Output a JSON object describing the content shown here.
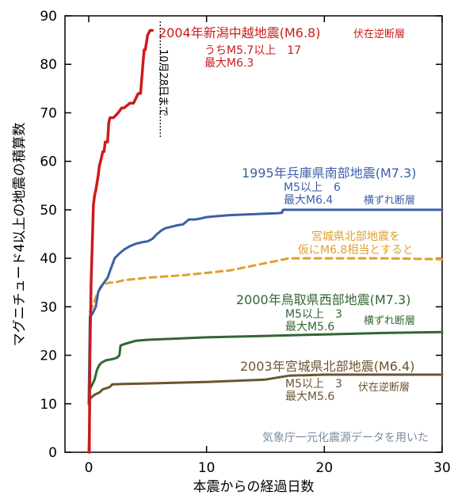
{
  "chart_data": {
    "type": "line",
    "xlabel": "本震からの経過日数",
    "ylabel": "マグニチュード4以上の地震の積算数",
    "xlim": [
      0,
      30
    ],
    "ylim": [
      0,
      90
    ],
    "xticks": [
      0,
      10,
      20,
      30
    ],
    "yticks": [
      0,
      10,
      20,
      30,
      40,
      50,
      60,
      70,
      80,
      90
    ],
    "grid": false,
    "note": "気象庁一元化震源データを用いた",
    "marker": {
      "x": 5.4,
      "y_from": 65,
      "y_to": 89,
      "label": "10月28日まで",
      "color": "#000000"
    },
    "series": [
      {
        "name": "2004年新潟中越地震(M6.8)",
        "color": "#cc1b1b",
        "dashed": false,
        "labels": [
          "2004年新潟中越地震(M6.8)",
          "伏在逆断層",
          "うちM5.7以上　17",
          "最大M6.3"
        ],
        "x": [
          0.05,
          0.1,
          0.2,
          0.4,
          0.5,
          0.6,
          0.8,
          0.9,
          1.0,
          1.2,
          1.3,
          1.4,
          1.6,
          1.7,
          1.8,
          1.9,
          2.1,
          2.5,
          2.8,
          3.0,
          3.5,
          3.8,
          4.0,
          4.2,
          4.4,
          4.6,
          4.7,
          4.8,
          5.0,
          5.2,
          5.4
        ],
        "y": [
          0,
          20,
          35,
          51,
          53,
          54,
          57,
          59,
          60,
          62,
          62,
          64,
          64,
          68,
          69,
          69,
          69,
          70,
          71,
          71,
          72,
          72,
          73,
          74,
          74,
          80,
          83,
          83,
          86,
          87,
          87
        ]
      },
      {
        "name": "1995年兵庫県南部地震(M7.3)",
        "color": "#3c5fa8",
        "dashed": false,
        "labels": [
          "1995年兵庫県南部地震(M7.3)",
          "M5以上　6",
          "最大M6.4",
          "横ずれ断層"
        ],
        "x": [
          0.0,
          0.1,
          0.3,
          0.6,
          0.8,
          1.0,
          1.3,
          1.6,
          1.9,
          2.2,
          2.6,
          3.0,
          3.5,
          4.0,
          4.5,
          5.0,
          5.4,
          5.8,
          6.2,
          6.5,
          7.0,
          7.5,
          8.0,
          8.5,
          9.0,
          9.5,
          10.0,
          11.0,
          12.0,
          13.0,
          14.0,
          15.0,
          16.0,
          16.4,
          16.5,
          18.0,
          20.0,
          25.0,
          30.0
        ],
        "y": [
          10,
          28,
          28.5,
          30,
          33,
          34,
          35,
          36,
          38,
          40,
          41,
          41.8,
          42.5,
          43,
          43.3,
          43.5,
          44,
          45,
          45.8,
          46.2,
          46.5,
          46.8,
          47,
          48,
          48,
          48.2,
          48.5,
          48.7,
          48.9,
          49,
          49.1,
          49.2,
          49.3,
          49.4,
          50,
          50,
          50,
          50,
          50
        ]
      },
      {
        "name": "宮城県北部地震を仮にM6.8相当とすると",
        "color": "#e0a030",
        "dashed": true,
        "labels": [
          "宮城県北部地震を",
          "仮にM6.8相当とすると"
        ],
        "x": [
          0.1,
          0.3,
          0.6,
          0.9,
          1.2,
          1.5,
          1.8,
          2.2,
          3.0,
          5.0,
          8.0,
          10.0,
          12.0,
          14.0,
          15.0,
          16.0,
          17.0,
          20.0,
          25.0,
          30.0
        ],
        "y": [
          29,
          30,
          32,
          33.5,
          34.5,
          34.8,
          35,
          35,
          35.5,
          36,
          36.5,
          37,
          37.5,
          38.5,
          39,
          39.5,
          40,
          40,
          40,
          39.8
        ]
      },
      {
        "name": "2000年鳥取県西部地震(M7.3)",
        "color": "#336633",
        "dashed": false,
        "labels": [
          "2000年鳥取県西部地震(M7.3)",
          "M5以上　3",
          "最大M5.6",
          "横ずれ断層"
        ],
        "x": [
          0.0,
          0.1,
          0.3,
          0.5,
          0.7,
          0.9,
          1.1,
          1.5,
          2.0,
          2.4,
          2.6,
          2.7,
          3.0,
          4.0,
          5.0,
          7.0,
          10.0,
          15.0,
          20.0,
          25.0,
          30.0
        ],
        "y": [
          10,
          13,
          14,
          15,
          17,
          18,
          18.5,
          19,
          19.2,
          19.5,
          20,
          22,
          22.3,
          23,
          23.2,
          23.4,
          23.7,
          24,
          24.3,
          24.6,
          24.8
        ]
      },
      {
        "name": "2003年宮城県北部地震(M6.4)",
        "color": "#6b5530",
        "dashed": false,
        "labels": [
          "2003年宮城県北部地震(M6.4)",
          "M5以上　3",
          "最大M5.6",
          "伏在逆断層"
        ],
        "x": [
          0.0,
          0.1,
          0.3,
          0.6,
          0.9,
          1.2,
          1.5,
          1.8,
          2.0,
          3.0,
          5.0,
          10.0,
          15.0,
          17.0,
          20.0,
          25.0,
          30.0
        ],
        "y": [
          0,
          11,
          11.5,
          12,
          12.3,
          13,
          13.2,
          13.5,
          14,
          14.1,
          14.2,
          14.5,
          15,
          15.8,
          16,
          16,
          16
        ]
      }
    ]
  }
}
